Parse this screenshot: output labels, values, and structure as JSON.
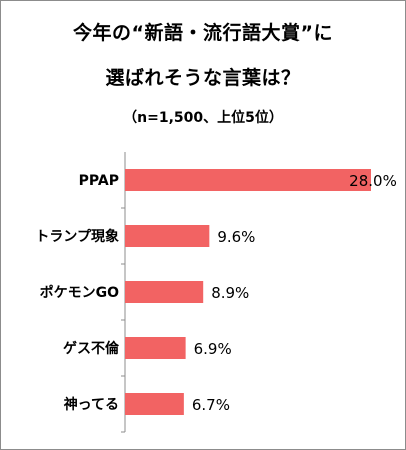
{
  "title_line1": "今年の“新語・流行語大賞”に",
  "title_line2": "選ばれそうな言葉は？",
  "subtitle": "（n=1,500、上位5位）",
  "bar_color": "#f26363",
  "axis_color": "#8c8c8c",
  "chart_data": {
    "type": "bar",
    "orientation": "horizontal",
    "title": "今年の“新語・流行語大賞”に選ばれそうな言葉は？",
    "subtitle": "（n=1,500、上位5位）",
    "categories": [
      "PPAP",
      "トランプ現象",
      "ポケモンGO",
      "ゲス不倫",
      "神ってる"
    ],
    "values": [
      28.0,
      9.6,
      8.9,
      6.9,
      6.7
    ],
    "value_labels": [
      "28.0%",
      "9.6%",
      "8.9%",
      "6.9%",
      "6.7%"
    ],
    "unit": "%",
    "xlim": [
      0,
      28
    ],
    "grid": false,
    "legend": "none"
  }
}
